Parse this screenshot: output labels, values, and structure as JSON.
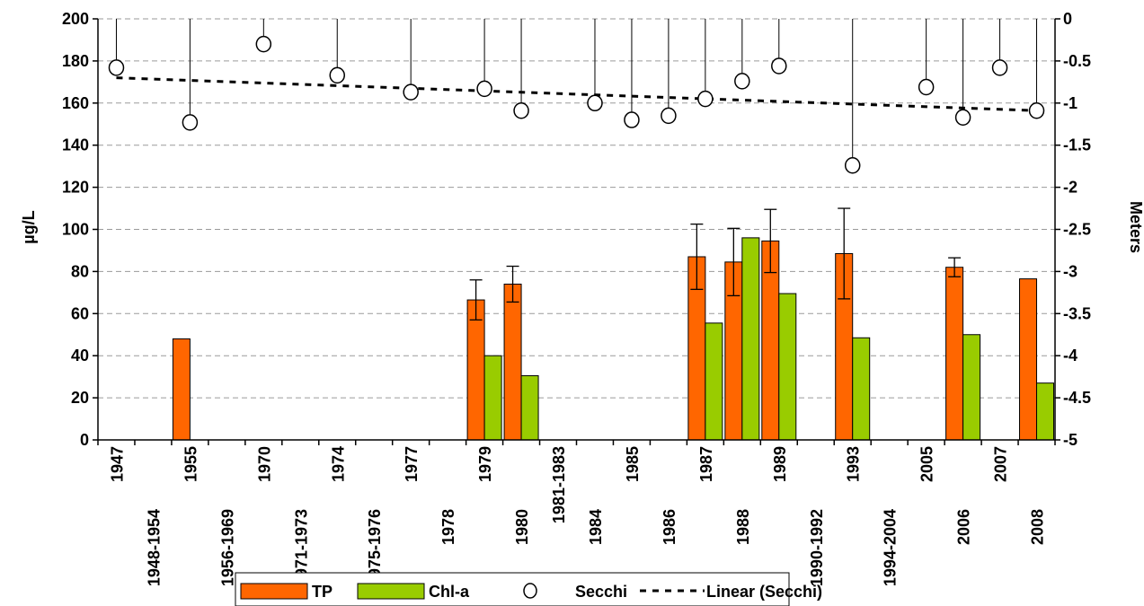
{
  "chart_data": {
    "type": "bar",
    "categories": [
      "1947",
      "1948-1954",
      "1955",
      "1956-1969",
      "1970",
      "1971-1973",
      "1974",
      "1975-1976",
      "1977",
      "1978",
      "1979",
      "1980",
      "1981-1983",
      "1984",
      "1985",
      "1986",
      "1987",
      "1988",
      "1989",
      "1990-1992",
      "1993",
      "1994-2004",
      "2005",
      "2006",
      "2007",
      "2008"
    ],
    "series": [
      {
        "name": "TP",
        "kind": "bar",
        "color": "#ff6600",
        "values": [
          null,
          null,
          48,
          null,
          null,
          null,
          null,
          null,
          null,
          null,
          66.5,
          74,
          null,
          null,
          null,
          null,
          87,
          84.5,
          94.5,
          null,
          88.5,
          null,
          null,
          82,
          null,
          76.5
        ],
        "error": [
          null,
          null,
          null,
          null,
          null,
          null,
          null,
          null,
          null,
          null,
          9.5,
          8.5,
          null,
          null,
          null,
          null,
          15.5,
          16,
          15,
          null,
          21.5,
          null,
          null,
          4.5,
          null,
          null
        ]
      },
      {
        "name": "Chl-a",
        "kind": "bar",
        "color": "#99cc00",
        "values": [
          null,
          null,
          null,
          null,
          null,
          null,
          null,
          null,
          null,
          null,
          40,
          30.5,
          null,
          null,
          null,
          null,
          55.5,
          96,
          69.5,
          null,
          48.5,
          null,
          null,
          50,
          null,
          27
        ]
      },
      {
        "name": "Secchi",
        "kind": "scatter",
        "axis": "right",
        "values": [
          -0.58,
          null,
          -1.23,
          null,
          -0.3,
          null,
          -0.67,
          null,
          -0.87,
          null,
          -0.83,
          -1.09,
          null,
          -1.0,
          -1.2,
          -1.15,
          -0.95,
          -0.74,
          -0.56,
          null,
          -1.74,
          null,
          -0.81,
          -1.17,
          -0.58,
          -1.09
        ]
      },
      {
        "name": "Linear (Secchi)",
        "kind": "trendline",
        "axis": "right",
        "from": -0.7,
        "to": -1.09
      }
    ],
    "ylabel": "µg/L",
    "y2label": "Meters",
    "ylim": [
      0,
      200
    ],
    "y2lim": [
      -5,
      0
    ],
    "yticks": [
      "0",
      "20",
      "40",
      "60",
      "80",
      "100",
      "120",
      "140",
      "160",
      "180",
      "200"
    ],
    "y2ticks": [
      "0",
      "-0.5",
      "-1",
      "-1.5",
      "-2",
      "-2.5",
      "-3",
      "-3.5",
      "-4",
      "-4.5",
      "-5"
    ],
    "grid": true,
    "legend": "bottom",
    "legend_labels": [
      "TP",
      "Chl-a",
      "Secchi",
      "Linear (Secchi)"
    ]
  }
}
